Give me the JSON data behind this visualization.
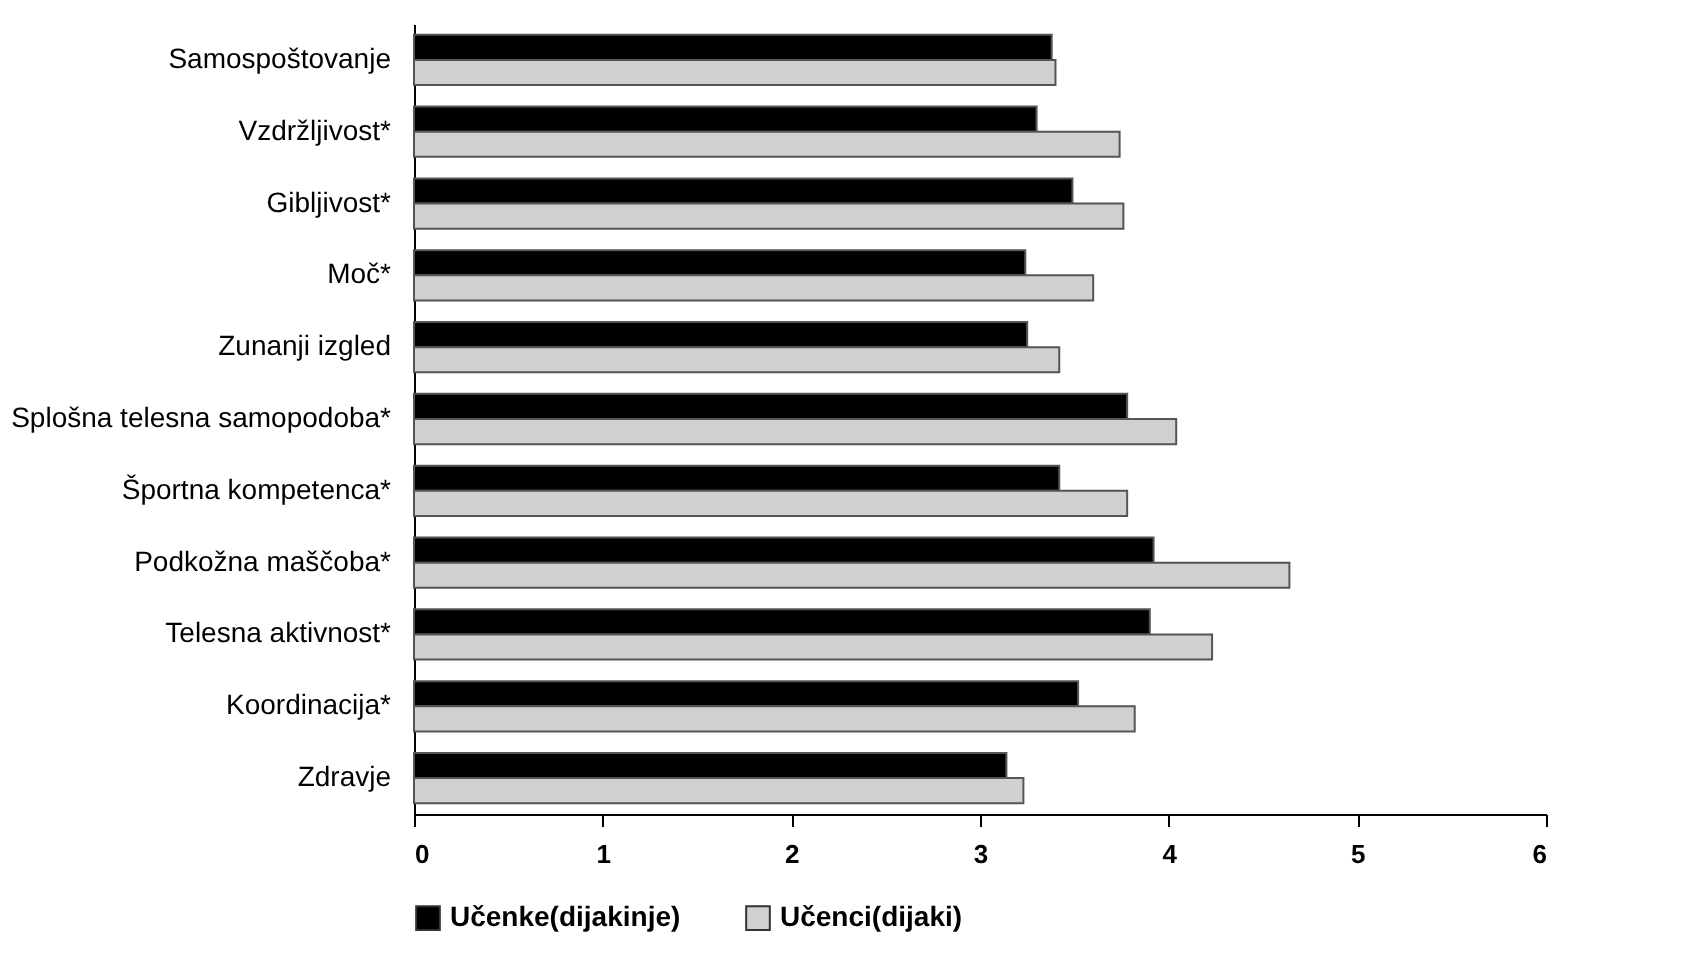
{
  "chart_data": {
    "type": "bar",
    "orientation": "horizontal",
    "categories": [
      "Samospoštovanje",
      "Vzdržljivost*",
      "Gibljivost*",
      "Moč*",
      "Zunanji izgled",
      "Splošna telesna samopodoba*",
      "Športna kompetenca*",
      "Podkožna maščoba*",
      "Telesna aktivnost*",
      "Koordinacija*",
      "Zdravje"
    ],
    "series": [
      {
        "name": "Učenke(dijakinje)",
        "color": "#000000",
        "values": [
          3.38,
          3.3,
          3.49,
          3.24,
          3.25,
          3.78,
          3.42,
          3.92,
          3.9,
          3.52,
          3.14
        ]
      },
      {
        "name": "Učenci(dijaki)",
        "color": "#d0d0d0",
        "values": [
          3.4,
          3.74,
          3.76,
          3.6,
          3.42,
          4.04,
          3.78,
          4.64,
          4.23,
          3.82,
          3.23
        ]
      }
    ],
    "xlim": [
      0,
      6
    ],
    "xticks": [
      0,
      1,
      2,
      3,
      4,
      5,
      6
    ],
    "grid": false,
    "legend": "bottom"
  }
}
